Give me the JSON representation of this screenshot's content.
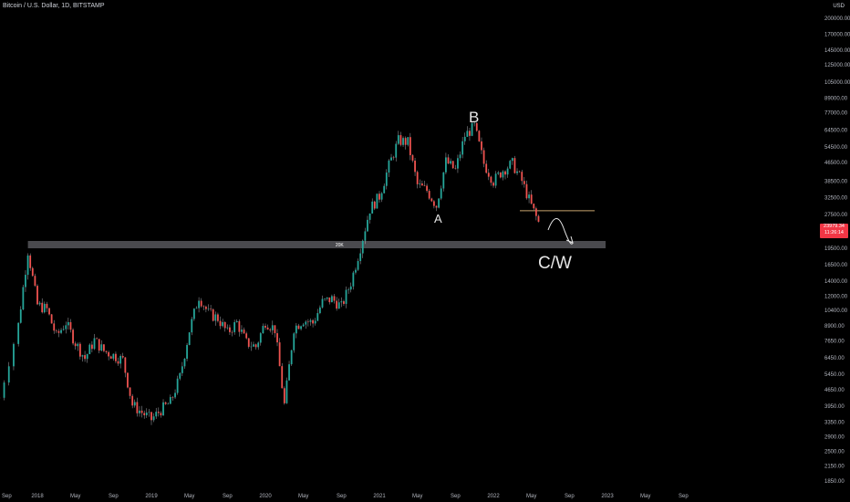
{
  "header": {
    "title": "Bitcoin / U.S. Dollar, 1D, BITSTAMP",
    "currency": "USD"
  },
  "price_tag": {
    "price": "23979.34",
    "countdown": "11:26:14"
  },
  "colors": {
    "background": "#000000",
    "up": "#26a69a",
    "down": "#ef5350",
    "wick": "#d1d4dc",
    "zone": "#4a4a4e",
    "line": "#c8a46e",
    "price_tag": "#f23645"
  },
  "chart_data": {
    "type": "candlestick",
    "title": "Bitcoin / U.S. Dollar, 1D, BITSTAMP",
    "y_scale": "log",
    "ylim": [
      1700,
      240000
    ],
    "y_ticks": [
      "200000.00",
      "170000.00",
      "145000.00",
      "125000.00",
      "105000.00",
      "89000.00",
      "77000.00",
      "64500.00",
      "54500.00",
      "46500.00",
      "38500.00",
      "32500.00",
      "27500.00",
      "23500.00",
      "19500.00",
      "16500.00",
      "14000.00",
      "12000.00",
      "10400.00",
      "8900.00",
      "7650.00",
      "6450.00",
      "5450.00",
      "4650.00",
      "3950.00",
      "3350.00",
      "2900.00",
      "2500.00",
      "2150.00",
      "1850.00"
    ],
    "x_ticks": [
      "Sep",
      "2018",
      "May",
      "Sep",
      "2019",
      "May",
      "Sep",
      "2020",
      "May",
      "Sep",
      "2021",
      "May",
      "Sep",
      "2022",
      "May",
      "Sep",
      "2023",
      "May",
      "Sep"
    ],
    "x_range": [
      "2017-09",
      "2023-11"
    ],
    "series_close": [
      [
        "2017-09",
        4300
      ],
      [
        "2017-11",
        9000
      ],
      [
        "2017-12",
        19000
      ],
      [
        "2018-01",
        11000
      ],
      [
        "2018-02",
        10500
      ],
      [
        "2018-03",
        8000
      ],
      [
        "2018-04",
        9200
      ],
      [
        "2018-05",
        7500
      ],
      [
        "2018-06",
        6400
      ],
      [
        "2018-07",
        7700
      ],
      [
        "2018-08",
        6900
      ],
      [
        "2018-09",
        6600
      ],
      [
        "2018-10",
        6300
      ],
      [
        "2018-11",
        4000
      ],
      [
        "2018-12",
        3700
      ],
      [
        "2019-01",
        3450
      ],
      [
        "2019-02",
        3800
      ],
      [
        "2019-03",
        4100
      ],
      [
        "2019-04",
        5300
      ],
      [
        "2019-05",
        8500
      ],
      [
        "2019-06",
        12000
      ],
      [
        "2019-07",
        10100
      ],
      [
        "2019-08",
        9600
      ],
      [
        "2019-09",
        8300
      ],
      [
        "2019-10",
        9200
      ],
      [
        "2019-11",
        7500
      ],
      [
        "2019-12",
        7200
      ],
      [
        "2020-01",
        9300
      ],
      [
        "2020-02",
        8600
      ],
      [
        "2020-03",
        4000
      ],
      [
        "2020-04",
        8700
      ],
      [
        "2020-05",
        9450
      ],
      [
        "2020-06",
        9150
      ],
      [
        "2020-07",
        11300
      ],
      [
        "2020-08",
        11700
      ],
      [
        "2020-09",
        10800
      ],
      [
        "2020-10",
        13800
      ],
      [
        "2020-11",
        19700
      ],
      [
        "2020-12",
        29000
      ],
      [
        "2021-01",
        33000
      ],
      [
        "2021-02",
        45000
      ],
      [
        "2021-03",
        58000
      ],
      [
        "2021-04",
        57000
      ],
      [
        "2021-05",
        37000
      ],
      [
        "2021-06",
        35000
      ],
      [
        "2021-07",
        30000
      ],
      [
        "2021-08",
        47000
      ],
      [
        "2021-09",
        43000
      ],
      [
        "2021-10",
        61000
      ],
      [
        "2021-11",
        67000
      ],
      [
        "2021-12",
        46000
      ],
      [
        "2022-01",
        38500
      ],
      [
        "2022-02",
        43000
      ],
      [
        "2022-03",
        46000
      ],
      [
        "2022-04",
        38500
      ],
      [
        "2022-05",
        30000
      ],
      [
        "2022-06",
        23900
      ]
    ],
    "annotations": {
      "zone_label": "20K",
      "wave_b": "B",
      "wave_a": "A",
      "wave_cw": "C/W"
    },
    "zone_range": [
      19500,
      21000
    ],
    "support_line": 28500
  }
}
